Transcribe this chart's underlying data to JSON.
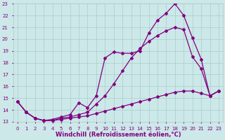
{
  "xlabel": "Windchill (Refroidissement éolien,°C)",
  "bg_color": "#cce8e8",
  "line_color": "#800080",
  "grid_color": "#aacccc",
  "xlim": [
    -0.5,
    23.5
  ],
  "ylim": [
    13,
    23
  ],
  "xticks": [
    0,
    1,
    2,
    3,
    4,
    5,
    6,
    7,
    8,
    9,
    10,
    11,
    12,
    13,
    14,
    15,
    16,
    17,
    18,
    19,
    20,
    21,
    22,
    23
  ],
  "yticks": [
    13,
    14,
    15,
    16,
    17,
    18,
    19,
    20,
    21,
    22,
    23
  ],
  "line1_x": [
    0,
    1,
    2,
    3,
    4,
    5,
    6,
    7,
    8,
    9,
    10,
    11,
    12,
    13,
    14,
    15,
    16,
    17,
    18,
    19,
    20,
    21,
    22,
    23
  ],
  "line1_y": [
    14.7,
    13.8,
    13.3,
    13.1,
    13.1,
    13.2,
    13.3,
    13.4,
    13.5,
    13.7,
    13.9,
    14.1,
    14.3,
    14.5,
    14.7,
    14.9,
    15.1,
    15.3,
    15.5,
    15.6,
    15.6,
    15.4,
    15.2,
    15.6
  ],
  "line2_x": [
    0,
    1,
    2,
    3,
    4,
    5,
    6,
    7,
    8,
    9,
    10,
    11,
    12,
    13,
    14,
    15,
    16,
    17,
    18,
    19,
    20,
    21,
    22,
    23
  ],
  "line2_y": [
    14.7,
    13.8,
    13.3,
    13.1,
    13.1,
    13.3,
    13.4,
    13.6,
    13.8,
    14.5,
    15.2,
    16.2,
    17.3,
    18.4,
    19.2,
    19.8,
    20.3,
    20.7,
    21.0,
    20.8,
    18.5,
    17.5,
    15.2,
    15.6
  ],
  "line3_x": [
    0,
    1,
    2,
    3,
    4,
    5,
    6,
    7,
    8,
    9,
    10,
    11,
    12,
    13,
    14,
    15,
    16,
    17,
    18,
    19,
    20,
    21,
    22,
    23
  ],
  "line3_y": [
    14.7,
    13.8,
    13.3,
    13.1,
    13.2,
    13.4,
    13.6,
    14.6,
    14.2,
    15.2,
    18.4,
    18.9,
    18.8,
    18.8,
    19.0,
    20.5,
    21.6,
    22.2,
    23.0,
    22.0,
    20.1,
    18.3,
    15.2,
    15.6
  ],
  "marker": "D",
  "markersize": 2.0,
  "linewidth": 0.9,
  "tick_fontsize": 5.0,
  "xlabel_fontsize": 6.0
}
